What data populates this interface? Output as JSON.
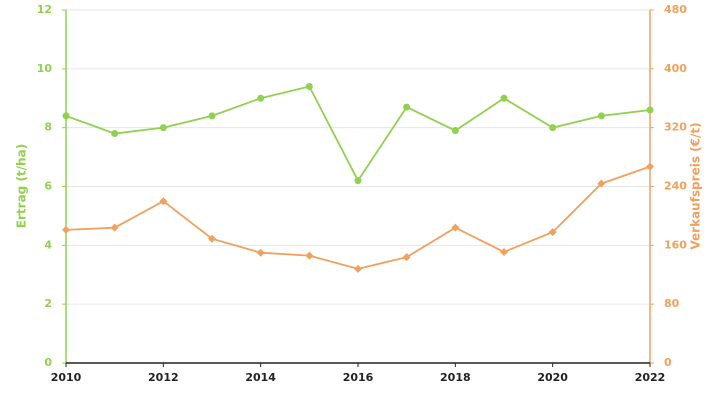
{
  "chart_data": {
    "type": "line",
    "x": [
      2010,
      2011,
      2012,
      2013,
      2014,
      2015,
      2016,
      2017,
      2018,
      2019,
      2020,
      2021,
      2022
    ],
    "xlim": [
      2010,
      2022
    ],
    "xticks": [
      2010,
      2012,
      2014,
      2016,
      2018,
      2020,
      2022
    ],
    "y_label": "Ertrag (t/ha)",
    "y2_label": "Verkaufspreis (€/t)",
    "ylim": [
      0,
      12
    ],
    "yticks": [
      0,
      2,
      4,
      6,
      8,
      10,
      12
    ],
    "y2lim": [
      0,
      480
    ],
    "y2ticks": [
      0,
      80,
      160,
      240,
      320,
      400,
      480
    ],
    "grid": true,
    "series": [
      {
        "color": "#92d050",
        "marker": "circle",
        "values": [
          8.4,
          7.8,
          8.0,
          8.4,
          9.0,
          9.4,
          6.2,
          8.7,
          7.9,
          9.0,
          8.0,
          8.4,
          8.6
        ]
      },
      {
        "color": "#f2a05c",
        "marker": "diamond",
        "axis": "y2",
        "values": [
          181,
          184,
          220,
          169,
          150,
          146,
          128,
          144,
          184,
          151,
          178,
          244,
          267
        ]
      }
    ]
  }
}
